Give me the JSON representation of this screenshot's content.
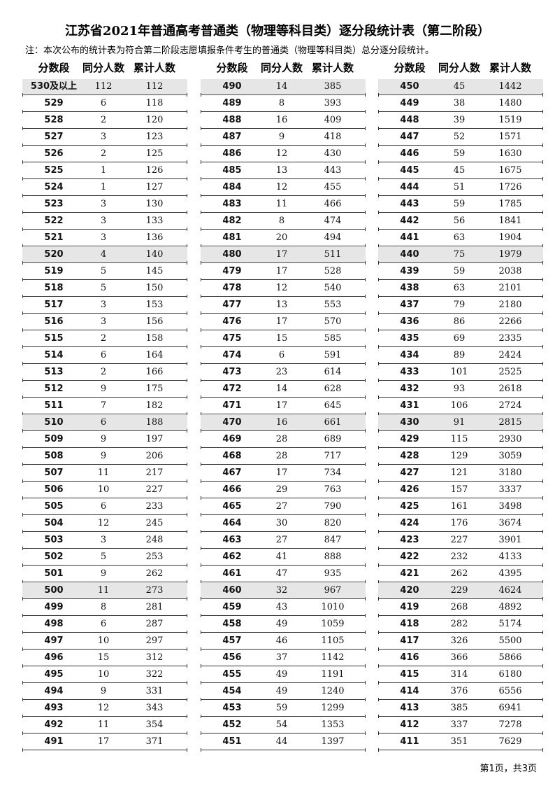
{
  "header": {
    "title": "江苏省2021年普通高考普通类（物理等科目类）逐分段统计表（第二阶段）",
    "note": "注：本次公布的统计表为符合第二阶段志愿填报条件考生的普通类（物理等科目类）总分逐分段统计。"
  },
  "table": {
    "headers": [
      "分数段",
      "同分人数",
      "累计人数"
    ],
    "columns": [
      {
        "rows": [
          [
            "530及以上",
            112,
            112
          ],
          [
            529,
            6,
            118
          ],
          [
            528,
            2,
            120
          ],
          [
            527,
            3,
            123
          ],
          [
            526,
            2,
            125
          ],
          [
            525,
            1,
            126
          ],
          [
            524,
            1,
            127
          ],
          [
            523,
            3,
            130
          ],
          [
            522,
            3,
            133
          ],
          [
            521,
            3,
            136
          ],
          [
            520,
            4,
            140
          ],
          [
            519,
            5,
            145
          ],
          [
            518,
            5,
            150
          ],
          [
            517,
            3,
            153
          ],
          [
            516,
            3,
            156
          ],
          [
            515,
            2,
            158
          ],
          [
            514,
            6,
            164
          ],
          [
            513,
            2,
            166
          ],
          [
            512,
            9,
            175
          ],
          [
            511,
            7,
            182
          ],
          [
            510,
            6,
            188
          ],
          [
            509,
            9,
            197
          ],
          [
            508,
            9,
            206
          ],
          [
            507,
            11,
            217
          ],
          [
            506,
            10,
            227
          ],
          [
            505,
            6,
            233
          ],
          [
            504,
            12,
            245
          ],
          [
            503,
            3,
            248
          ],
          [
            502,
            5,
            253
          ],
          [
            501,
            9,
            262
          ],
          [
            500,
            11,
            273
          ],
          [
            499,
            8,
            281
          ],
          [
            498,
            6,
            287
          ],
          [
            497,
            10,
            297
          ],
          [
            496,
            15,
            312
          ],
          [
            495,
            10,
            322
          ],
          [
            494,
            9,
            331
          ],
          [
            493,
            12,
            343
          ],
          [
            492,
            11,
            354
          ],
          [
            491,
            17,
            371
          ]
        ]
      },
      {
        "rows": [
          [
            490,
            14,
            385
          ],
          [
            489,
            8,
            393
          ],
          [
            488,
            16,
            409
          ],
          [
            487,
            9,
            418
          ],
          [
            486,
            12,
            430
          ],
          [
            485,
            13,
            443
          ],
          [
            484,
            12,
            455
          ],
          [
            483,
            11,
            466
          ],
          [
            482,
            8,
            474
          ],
          [
            481,
            20,
            494
          ],
          [
            480,
            17,
            511
          ],
          [
            479,
            17,
            528
          ],
          [
            478,
            12,
            540
          ],
          [
            477,
            13,
            553
          ],
          [
            476,
            17,
            570
          ],
          [
            475,
            15,
            585
          ],
          [
            474,
            6,
            591
          ],
          [
            473,
            23,
            614
          ],
          [
            472,
            14,
            628
          ],
          [
            471,
            17,
            645
          ],
          [
            470,
            16,
            661
          ],
          [
            469,
            28,
            689
          ],
          [
            468,
            28,
            717
          ],
          [
            467,
            17,
            734
          ],
          [
            466,
            29,
            763
          ],
          [
            465,
            27,
            790
          ],
          [
            464,
            30,
            820
          ],
          [
            463,
            27,
            847
          ],
          [
            462,
            41,
            888
          ],
          [
            461,
            47,
            935
          ],
          [
            460,
            32,
            967
          ],
          [
            459,
            43,
            1010
          ],
          [
            458,
            49,
            1059
          ],
          [
            457,
            46,
            1105
          ],
          [
            456,
            37,
            1142
          ],
          [
            455,
            49,
            1191
          ],
          [
            454,
            49,
            1240
          ],
          [
            453,
            59,
            1299
          ],
          [
            452,
            54,
            1353
          ],
          [
            451,
            44,
            1397
          ]
        ]
      },
      {
        "rows": [
          [
            450,
            45,
            1442
          ],
          [
            449,
            38,
            1480
          ],
          [
            448,
            39,
            1519
          ],
          [
            447,
            52,
            1571
          ],
          [
            446,
            59,
            1630
          ],
          [
            445,
            45,
            1675
          ],
          [
            444,
            51,
            1726
          ],
          [
            443,
            59,
            1785
          ],
          [
            442,
            56,
            1841
          ],
          [
            441,
            63,
            1904
          ],
          [
            440,
            75,
            1979
          ],
          [
            439,
            59,
            2038
          ],
          [
            438,
            63,
            2101
          ],
          [
            437,
            79,
            2180
          ],
          [
            436,
            86,
            2266
          ],
          [
            435,
            69,
            2335
          ],
          [
            434,
            89,
            2424
          ],
          [
            433,
            101,
            2525
          ],
          [
            432,
            93,
            2618
          ],
          [
            431,
            106,
            2724
          ],
          [
            430,
            91,
            2815
          ],
          [
            429,
            115,
            2930
          ],
          [
            428,
            129,
            3059
          ],
          [
            427,
            121,
            3180
          ],
          [
            426,
            157,
            3337
          ],
          [
            425,
            161,
            3498
          ],
          [
            424,
            176,
            3674
          ],
          [
            423,
            227,
            3901
          ],
          [
            422,
            232,
            4133
          ],
          [
            421,
            262,
            4395
          ],
          [
            420,
            229,
            4624
          ],
          [
            419,
            268,
            4892
          ],
          [
            418,
            282,
            5174
          ],
          [
            417,
            326,
            5500
          ],
          [
            416,
            366,
            5866
          ],
          [
            415,
            314,
            6180
          ],
          [
            414,
            376,
            6556
          ],
          [
            413,
            385,
            6941
          ],
          [
            412,
            337,
            7278
          ],
          [
            411,
            351,
            7629
          ]
        ]
      }
    ]
  },
  "footer": "第1页，共3页"
}
